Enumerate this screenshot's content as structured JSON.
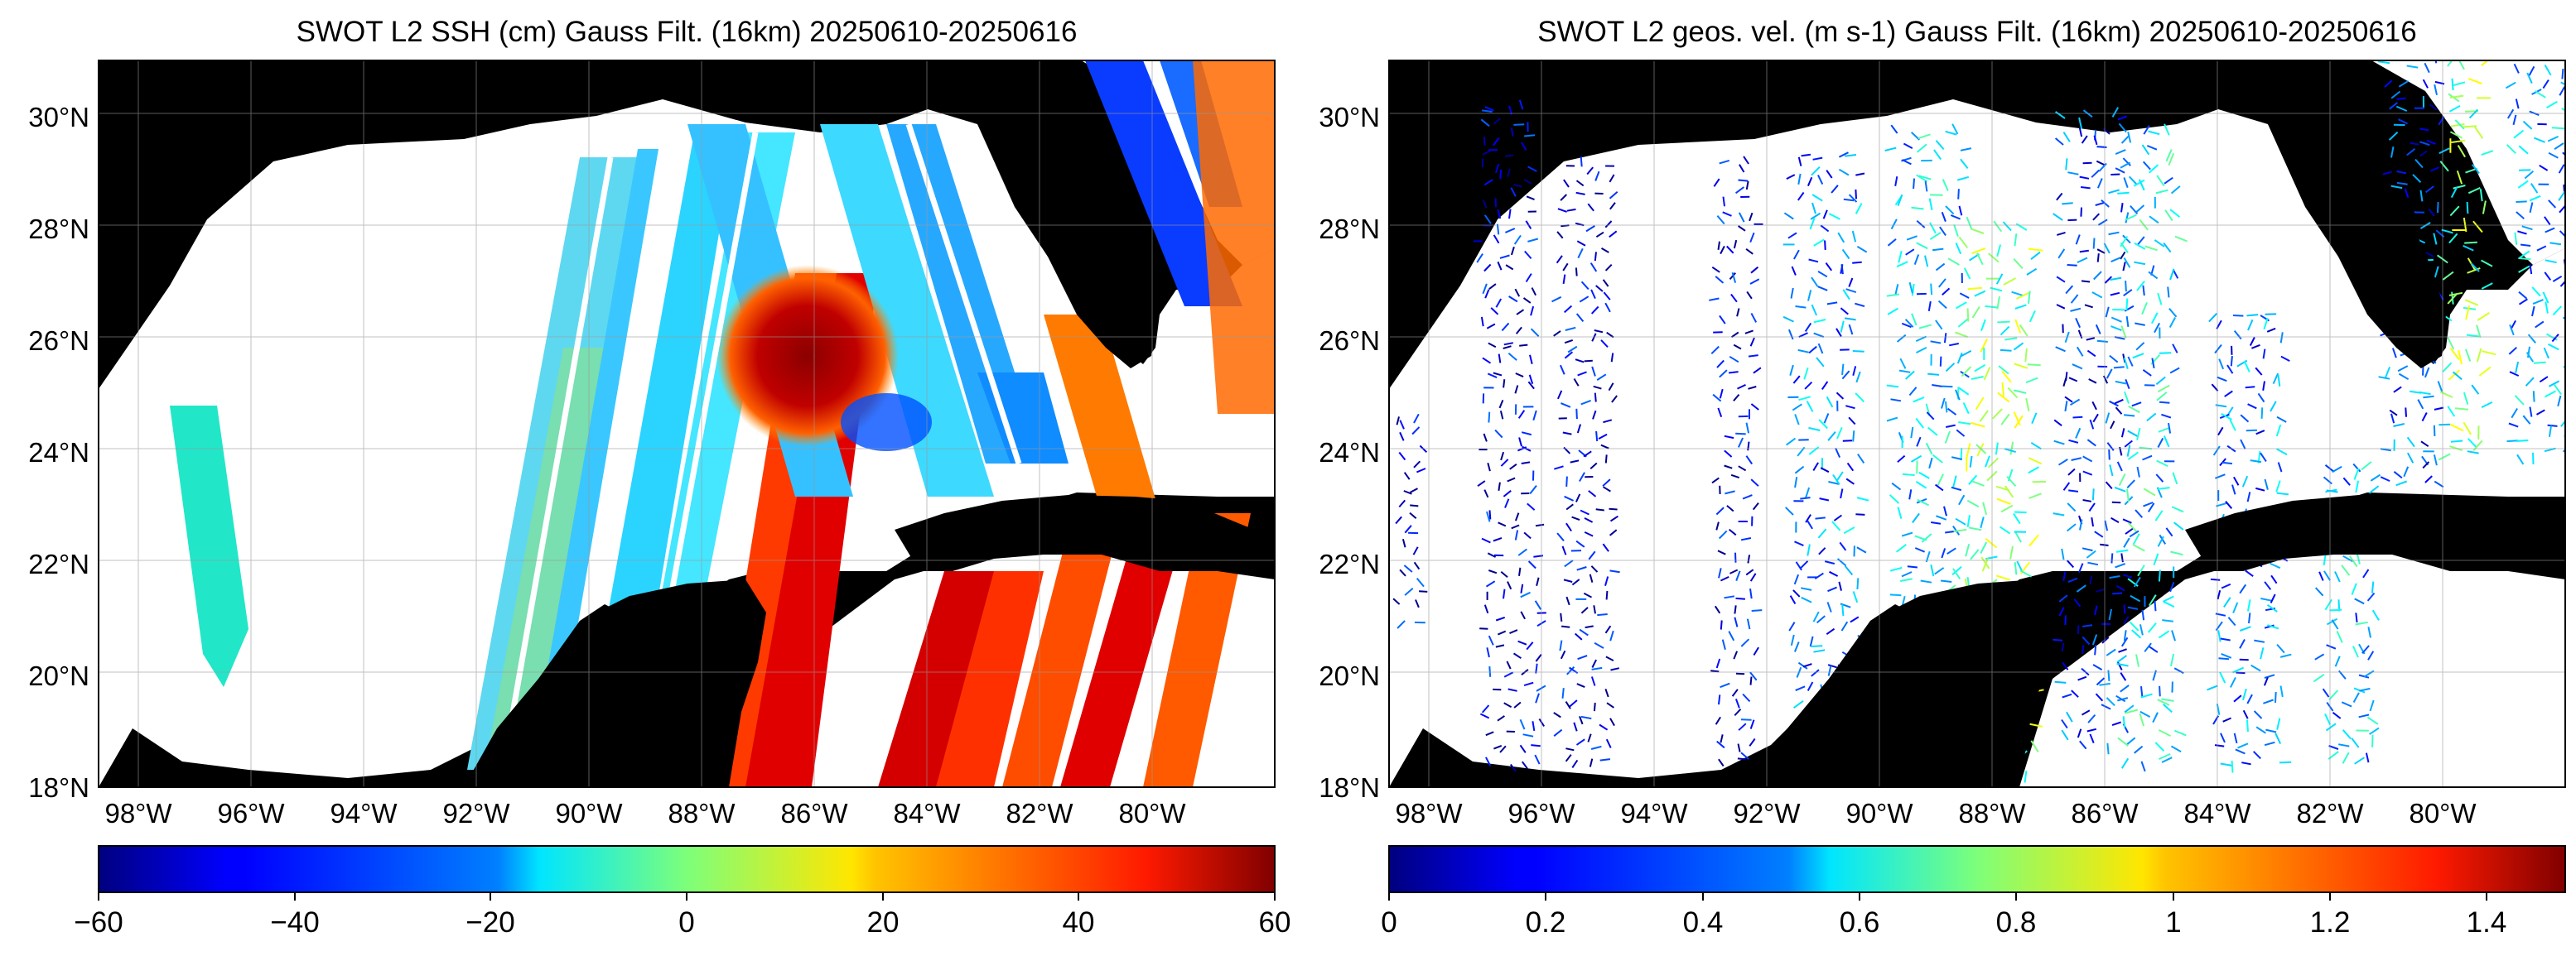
{
  "map_data": [
    {
      "title": "SWOT L2 SSH (cm) Gauss Filt. (16km) 20250610-20250616",
      "variable": "SSH",
      "units": "cm",
      "lon_range": [
        -99.5,
        -77.5
      ],
      "lat_range": [
        18,
        31
      ],
      "lat_ticks": [
        "18°N",
        "20°N",
        "22°N",
        "24°N",
        "26°N",
        "28°N",
        "30°N"
      ],
      "lon_ticks": [
        "98°W",
        "96°W",
        "94°W",
        "92°W",
        "90°W",
        "88°W",
        "86°W",
        "84°W",
        "82°W",
        "80°W"
      ],
      "colorbar": {
        "colormap": "jet",
        "range": [
          -60,
          60
        ],
        "tick_labels": [
          "−60",
          "−40",
          "−20",
          "0",
          "20",
          "40",
          "60"
        ]
      },
      "land_color": "#000000",
      "no_data_color": "#ffffff",
      "features": [
        "Gulf of Mexico",
        "Loop Current warm eddy (high SSH)",
        "Florida",
        "Cuba",
        "Yucatán Peninsula"
      ]
    },
    {
      "title": "SWOT L2 geos. vel. (m s-1) Gauss Filt. (16km) 20250610-20250616",
      "variable": "geostrophic velocity",
      "units": "m s-1",
      "lon_range": [
        -99.5,
        -77.5
      ],
      "lat_range": [
        18,
        31
      ],
      "lat_ticks": [
        "18°N",
        "20°N",
        "22°N",
        "24°N",
        "26°N",
        "28°N",
        "30°N"
      ],
      "lon_ticks": [
        "98°W",
        "96°W",
        "94°W",
        "92°W",
        "90°W",
        "88°W",
        "86°W",
        "84°W",
        "82°W",
        "80°W"
      ],
      "colorbar": {
        "colormap": "jet",
        "range": [
          0,
          1.5
        ],
        "tick_labels": [
          "0",
          "0.2",
          "0.4",
          "0.6",
          "0.8",
          "1",
          "1.2",
          "1.4"
        ]
      },
      "land_color": "#000000",
      "no_data_color": "#ffffff",
      "features": [
        "velocity vectors along SWOT swaths",
        "Loop Current"
      ]
    }
  ]
}
